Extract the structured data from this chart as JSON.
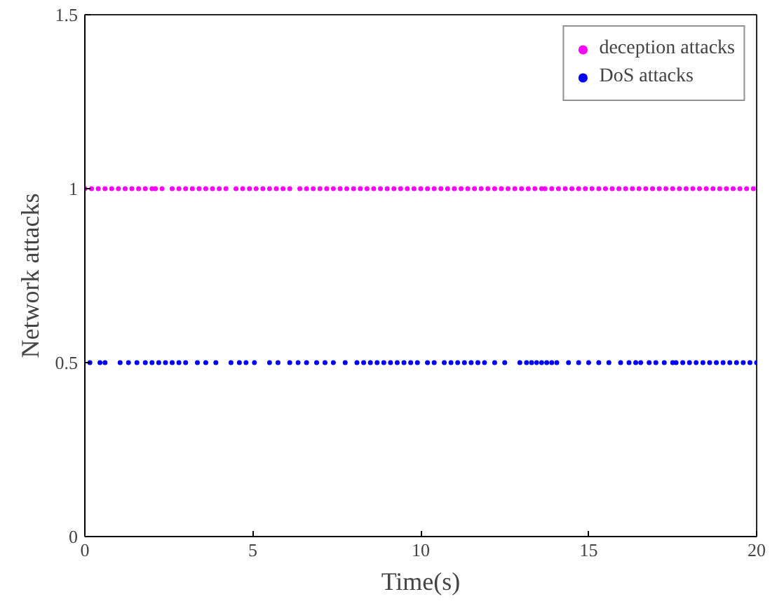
{
  "chart_data": {
    "type": "scatter",
    "xlabel": "Time(s)",
    "ylabel": "Network attacks",
    "xlim": [
      0,
      20
    ],
    "ylim": [
      0,
      1.5
    ],
    "xticks": [
      0,
      5,
      10,
      15,
      20
    ],
    "yticks": [
      0,
      0.5,
      1,
      1.5
    ],
    "grid": false,
    "legend": "top right",
    "marker": "circle",
    "series": [
      {
        "name": "deception attacks",
        "color": "#ff00ff",
        "x": [
          0,
          0.2,
          0.4,
          0.6,
          0.8,
          1.0,
          1.2,
          1.4,
          1.6,
          1.8,
          2.0,
          2.1,
          2.3,
          2.6,
          2.8,
          3.0,
          3.2,
          3.4,
          3.6,
          3.8,
          4.0,
          4.2,
          4.5,
          4.7,
          4.9,
          5.1,
          5.3,
          5.5,
          5.7,
          5.9,
          6.1,
          6.4,
          6.6,
          6.8,
          7.0,
          7.2,
          7.4,
          7.6,
          7.8,
          8.0,
          8.2,
          8.4,
          8.6,
          8.8,
          9.0,
          9.2,
          9.4,
          9.6,
          9.8,
          10.0,
          10.2,
          10.4,
          10.6,
          10.8,
          11.0,
          11.2,
          11.4,
          11.6,
          11.8,
          12.0,
          12.2,
          12.4,
          12.6,
          12.8,
          13.0,
          13.2,
          13.4,
          13.6,
          13.7,
          13.9,
          14.1,
          14.3,
          14.5,
          14.7,
          14.9,
          15.1,
          15.3,
          15.5,
          15.7,
          15.9,
          16.1,
          16.3,
          16.5,
          16.7,
          16.9,
          17.1,
          17.3,
          17.5,
          17.7,
          17.9,
          18.1,
          18.3,
          18.5,
          18.7,
          18.9,
          19.1,
          19.3,
          19.5,
          19.7,
          19.9
        ],
        "values": [
          1,
          1,
          1,
          1,
          1,
          1,
          1,
          1,
          1,
          1,
          1,
          1,
          1,
          1,
          1,
          1,
          1,
          1,
          1,
          1,
          1,
          1,
          1,
          1,
          1,
          1,
          1,
          1,
          1,
          1,
          1,
          1,
          1,
          1,
          1,
          1,
          1,
          1,
          1,
          1,
          1,
          1,
          1,
          1,
          1,
          1,
          1,
          1,
          1,
          1,
          1,
          1,
          1,
          1,
          1,
          1,
          1,
          1,
          1,
          1,
          1,
          1,
          1,
          1,
          1,
          1,
          1,
          1,
          1,
          1,
          1,
          1,
          1,
          1,
          1,
          1,
          1,
          1,
          1,
          1,
          1,
          1,
          1,
          1,
          1,
          1,
          1,
          1,
          1,
          1,
          1,
          1,
          1,
          1,
          1,
          1,
          1,
          1,
          1,
          1
        ]
      },
      {
        "name": "DoS attacks",
        "color": "#0000ff",
        "x": [
          0.15,
          0.45,
          0.6,
          1.05,
          1.3,
          1.55,
          1.8,
          2.0,
          2.2,
          2.4,
          2.6,
          2.8,
          3.0,
          3.35,
          3.6,
          3.9,
          4.35,
          4.6,
          4.8,
          5.05,
          5.5,
          5.75,
          6.1,
          6.35,
          6.6,
          6.9,
          7.15,
          7.4,
          7.75,
          8.1,
          8.3,
          8.5,
          8.7,
          8.9,
          9.1,
          9.3,
          9.5,
          9.7,
          9.9,
          10.2,
          10.4,
          10.7,
          10.9,
          11.1,
          11.3,
          11.5,
          11.7,
          11.9,
          12.2,
          12.5,
          12.95,
          13.15,
          13.3,
          13.45,
          13.6,
          13.75,
          13.9,
          14.05,
          14.4,
          14.7,
          15.0,
          15.3,
          15.6,
          15.95,
          16.2,
          16.4,
          16.55,
          16.8,
          17.0,
          17.25,
          17.5,
          17.6,
          17.8,
          18.0,
          18.2,
          18.4,
          18.6,
          18.8,
          19.0,
          19.2,
          19.4,
          19.6,
          19.8,
          20.0
        ],
        "values": [
          0.5,
          0.5,
          0.5,
          0.5,
          0.5,
          0.5,
          0.5,
          0.5,
          0.5,
          0.5,
          0.5,
          0.5,
          0.5,
          0.5,
          0.5,
          0.5,
          0.5,
          0.5,
          0.5,
          0.5,
          0.5,
          0.5,
          0.5,
          0.5,
          0.5,
          0.5,
          0.5,
          0.5,
          0.5,
          0.5,
          0.5,
          0.5,
          0.5,
          0.5,
          0.5,
          0.5,
          0.5,
          0.5,
          0.5,
          0.5,
          0.5,
          0.5,
          0.5,
          0.5,
          0.5,
          0.5,
          0.5,
          0.5,
          0.5,
          0.5,
          0.5,
          0.5,
          0.5,
          0.5,
          0.5,
          0.5,
          0.5,
          0.5,
          0.5,
          0.5,
          0.5,
          0.5,
          0.5,
          0.5,
          0.5,
          0.5,
          0.5,
          0.5,
          0.5,
          0.5,
          0.5,
          0.5,
          0.5,
          0.5,
          0.5,
          0.5,
          0.5,
          0.5,
          0.5,
          0.5,
          0.5,
          0.5,
          0.5,
          0.5
        ]
      }
    ]
  }
}
